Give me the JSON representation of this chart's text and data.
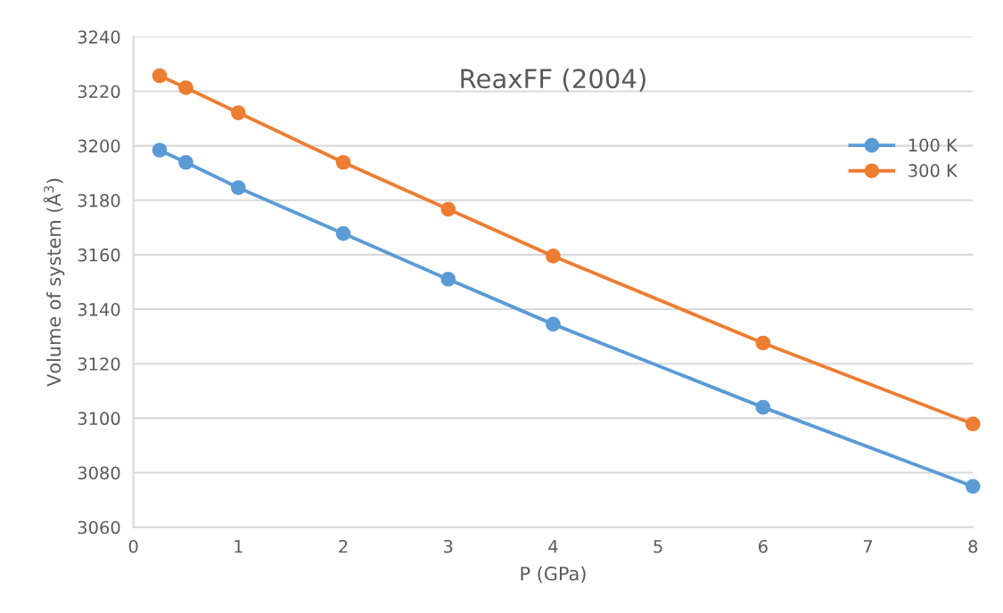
{
  "chart_data": {
    "type": "line",
    "title": "ReaxFF (2004)",
    "xlabel": "P (GPa)",
    "ylabel": "Volume of system (Å$^{3}$)",
    "x": [
      0.25,
      0.5,
      1,
      2,
      3,
      4,
      6,
      8
    ],
    "series": [
      {
        "name": "100 K",
        "color": "#5b9bd5",
        "values": [
          3198.4,
          3193.9,
          3184.6,
          3167.8,
          3151.0,
          3134.5,
          3104.0,
          3075.0
        ]
      },
      {
        "name": "300 K",
        "color": "#ed7d31",
        "values": [
          3225.7,
          3221.3,
          3212.1,
          3193.9,
          3176.7,
          3159.5,
          3127.6,
          3097.9
        ]
      }
    ],
    "xlim": [
      0,
      8
    ],
    "xticks": [
      0,
      1,
      2,
      3,
      4,
      5,
      6,
      7,
      8
    ],
    "ylim": [
      3060,
      3240
    ],
    "yticks": [
      3060,
      3080,
      3100,
      3120,
      3140,
      3160,
      3180,
      3200,
      3220,
      3240
    ],
    "grid": "y",
    "legend": "right",
    "marker": "circle",
    "line_style": "solid"
  }
}
